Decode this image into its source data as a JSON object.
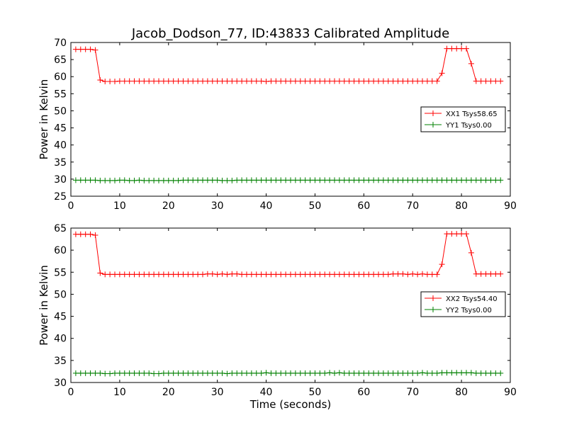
{
  "chart_data": [
    {
      "type": "line",
      "title": "Jacob_Dodson_77, ID:43833 Calibrated Amplitude",
      "xlabel": "",
      "ylabel": "Power in Kelvin",
      "xlim": [
        0,
        90
      ],
      "ylim": [
        25,
        70
      ],
      "xticks": [
        0,
        10,
        20,
        30,
        40,
        50,
        60,
        70,
        80,
        90
      ],
      "yticks": [
        25,
        30,
        35,
        40,
        45,
        50,
        55,
        60,
        65,
        70
      ],
      "legend_position": "right",
      "marker": "plus",
      "series": [
        {
          "name": "XX1 Tsys58.65",
          "color": "#ff0000",
          "x": [
            1,
            2,
            3,
            4,
            5,
            6,
            7,
            8,
            9,
            10,
            11,
            12,
            13,
            14,
            15,
            16,
            17,
            18,
            19,
            20,
            21,
            22,
            23,
            24,
            25,
            26,
            27,
            28,
            29,
            30,
            31,
            32,
            33,
            34,
            35,
            36,
            37,
            38,
            39,
            40,
            41,
            42,
            43,
            44,
            45,
            46,
            47,
            48,
            49,
            50,
            51,
            52,
            53,
            54,
            55,
            56,
            57,
            58,
            59,
            60,
            61,
            62,
            63,
            64,
            65,
            66,
            67,
            68,
            69,
            70,
            71,
            72,
            73,
            74,
            75,
            76,
            77,
            78,
            79,
            80,
            81,
            82,
            83,
            84,
            85,
            86,
            87,
            88
          ],
          "y": [
            68,
            68,
            68,
            68,
            67.8,
            59,
            58.6,
            58.6,
            58.6,
            58.7,
            58.7,
            58.7,
            58.7,
            58.7,
            58.7,
            58.7,
            58.7,
            58.7,
            58.7,
            58.7,
            58.7,
            58.7,
            58.7,
            58.7,
            58.7,
            58.7,
            58.7,
            58.7,
            58.7,
            58.7,
            58.7,
            58.7,
            58.7,
            58.7,
            58.7,
            58.7,
            58.7,
            58.7,
            58.7,
            58.6,
            58.7,
            58.7,
            58.7,
            58.7,
            58.7,
            58.7,
            58.7,
            58.7,
            58.7,
            58.7,
            58.7,
            58.7,
            58.7,
            58.7,
            58.7,
            58.7,
            58.7,
            58.7,
            58.7,
            58.7,
            58.7,
            58.7,
            58.7,
            58.7,
            58.7,
            58.7,
            58.7,
            58.7,
            58.7,
            58.7,
            58.7,
            58.7,
            58.7,
            58.7,
            58.7,
            61,
            68.2,
            68.2,
            68.2,
            68.2,
            68.2,
            63.8,
            58.7,
            58.7,
            58.7,
            58.7,
            58.7,
            58.7
          ]
        },
        {
          "name": "YY1 Tsys0.00",
          "color": "#008000",
          "x": [
            1,
            2,
            3,
            4,
            5,
            6,
            7,
            8,
            9,
            10,
            11,
            12,
            13,
            14,
            15,
            16,
            17,
            18,
            19,
            20,
            21,
            22,
            23,
            24,
            25,
            26,
            27,
            28,
            29,
            30,
            31,
            32,
            33,
            34,
            35,
            36,
            37,
            38,
            39,
            40,
            41,
            42,
            43,
            44,
            45,
            46,
            47,
            48,
            49,
            50,
            51,
            52,
            53,
            54,
            55,
            56,
            57,
            58,
            59,
            60,
            61,
            62,
            63,
            64,
            65,
            66,
            67,
            68,
            69,
            70,
            71,
            72,
            73,
            74,
            75,
            76,
            77,
            78,
            79,
            80,
            81,
            82,
            83,
            84,
            85,
            86,
            87,
            88
          ],
          "y": [
            29.7,
            29.7,
            29.7,
            29.7,
            29.7,
            29.6,
            29.6,
            29.6,
            29.6,
            29.7,
            29.7,
            29.6,
            29.6,
            29.7,
            29.6,
            29.6,
            29.6,
            29.6,
            29.6,
            29.6,
            29.6,
            29.6,
            29.7,
            29.7,
            29.7,
            29.7,
            29.7,
            29.7,
            29.7,
            29.7,
            29.6,
            29.6,
            29.6,
            29.7,
            29.7,
            29.7,
            29.7,
            29.7,
            29.7,
            29.7,
            29.7,
            29.7,
            29.7,
            29.7,
            29.7,
            29.7,
            29.7,
            29.7,
            29.7,
            29.7,
            29.7,
            29.7,
            29.7,
            29.7,
            29.7,
            29.7,
            29.7,
            29.7,
            29.7,
            29.7,
            29.7,
            29.7,
            29.7,
            29.7,
            29.7,
            29.7,
            29.7,
            29.7,
            29.7,
            29.7,
            29.7,
            29.7,
            29.7,
            29.7,
            29.7,
            29.7,
            29.7,
            29.7,
            29.7,
            29.7,
            29.7,
            29.7,
            29.7,
            29.7,
            29.7,
            29.7,
            29.7,
            29.7
          ]
        }
      ]
    },
    {
      "type": "line",
      "title": "",
      "xlabel": "Time (seconds)",
      "ylabel": "Power in Kelvin",
      "xlim": [
        0,
        90
      ],
      "ylim": [
        30,
        65
      ],
      "xticks": [
        0,
        10,
        20,
        30,
        40,
        50,
        60,
        70,
        80,
        90
      ],
      "yticks": [
        30,
        35,
        40,
        45,
        50,
        55,
        60,
        65
      ],
      "legend_position": "right",
      "marker": "plus",
      "series": [
        {
          "name": "XX2 Tsys54.40",
          "color": "#ff0000",
          "x": [
            1,
            2,
            3,
            4,
            5,
            6,
            7,
            8,
            9,
            10,
            11,
            12,
            13,
            14,
            15,
            16,
            17,
            18,
            19,
            20,
            21,
            22,
            23,
            24,
            25,
            26,
            27,
            28,
            29,
            30,
            31,
            32,
            33,
            34,
            35,
            36,
            37,
            38,
            39,
            40,
            41,
            42,
            43,
            44,
            45,
            46,
            47,
            48,
            49,
            50,
            51,
            52,
            53,
            54,
            55,
            56,
            57,
            58,
            59,
            60,
            61,
            62,
            63,
            64,
            65,
            66,
            67,
            68,
            69,
            70,
            71,
            72,
            73,
            74,
            75,
            76,
            77,
            78,
            79,
            80,
            81,
            82,
            83,
            84,
            85,
            86,
            87,
            88
          ],
          "y": [
            63.6,
            63.6,
            63.6,
            63.6,
            63.4,
            54.8,
            54.5,
            54.5,
            54.5,
            54.5,
            54.5,
            54.5,
            54.5,
            54.5,
            54.5,
            54.5,
            54.5,
            54.5,
            54.5,
            54.5,
            54.5,
            54.5,
            54.5,
            54.5,
            54.5,
            54.5,
            54.5,
            54.6,
            54.6,
            54.5,
            54.6,
            54.5,
            54.6,
            54.6,
            54.5,
            54.5,
            54.5,
            54.5,
            54.5,
            54.5,
            54.5,
            54.5,
            54.5,
            54.5,
            54.5,
            54.5,
            54.5,
            54.5,
            54.5,
            54.5,
            54.5,
            54.5,
            54.5,
            54.5,
            54.5,
            54.5,
            54.5,
            54.5,
            54.5,
            54.5,
            54.5,
            54.5,
            54.5,
            54.5,
            54.5,
            54.6,
            54.6,
            54.6,
            54.5,
            54.6,
            54.5,
            54.6,
            54.5,
            54.5,
            54.5,
            56.8,
            63.7,
            63.7,
            63.7,
            63.7,
            63.7,
            59.4,
            54.6,
            54.6,
            54.6,
            54.6,
            54.6,
            54.6
          ]
        },
        {
          "name": "YY2 Tsys0.00",
          "color": "#008000",
          "x": [
            1,
            2,
            3,
            4,
            5,
            6,
            7,
            8,
            9,
            10,
            11,
            12,
            13,
            14,
            15,
            16,
            17,
            18,
            19,
            20,
            21,
            22,
            23,
            24,
            25,
            26,
            27,
            28,
            29,
            30,
            31,
            32,
            33,
            34,
            35,
            36,
            37,
            38,
            39,
            40,
            41,
            42,
            43,
            44,
            45,
            46,
            47,
            48,
            49,
            50,
            51,
            52,
            53,
            54,
            55,
            56,
            57,
            58,
            59,
            60,
            61,
            62,
            63,
            64,
            65,
            66,
            67,
            68,
            69,
            70,
            71,
            72,
            73,
            74,
            75,
            76,
            77,
            78,
            79,
            80,
            81,
            82,
            83,
            84,
            85,
            86,
            87,
            88
          ],
          "y": [
            32.1,
            32.1,
            32.1,
            32.1,
            32.1,
            32.1,
            32,
            32,
            32.1,
            32.1,
            32.1,
            32.1,
            32.1,
            32.1,
            32.1,
            32.1,
            32,
            32,
            32.1,
            32.1,
            32.1,
            32.1,
            32.1,
            32.1,
            32.1,
            32.1,
            32.1,
            32.1,
            32.1,
            32.1,
            32.1,
            32,
            32.1,
            32.1,
            32.1,
            32.1,
            32.1,
            32.1,
            32.1,
            32.2,
            32.1,
            32.1,
            32.1,
            32.1,
            32.1,
            32.1,
            32.1,
            32.1,
            32.1,
            32.1,
            32.1,
            32.1,
            32.2,
            32.1,
            32.2,
            32.1,
            32.1,
            32.1,
            32.1,
            32.1,
            32.1,
            32.1,
            32.1,
            32.1,
            32.1,
            32.1,
            32.1,
            32.1,
            32.1,
            32.1,
            32.1,
            32.2,
            32.1,
            32.1,
            32.1,
            32.2,
            32.2,
            32.2,
            32.2,
            32.2,
            32.2,
            32.2,
            32.1,
            32.1,
            32.1,
            32.1,
            32.1,
            32.1
          ]
        }
      ]
    }
  ]
}
